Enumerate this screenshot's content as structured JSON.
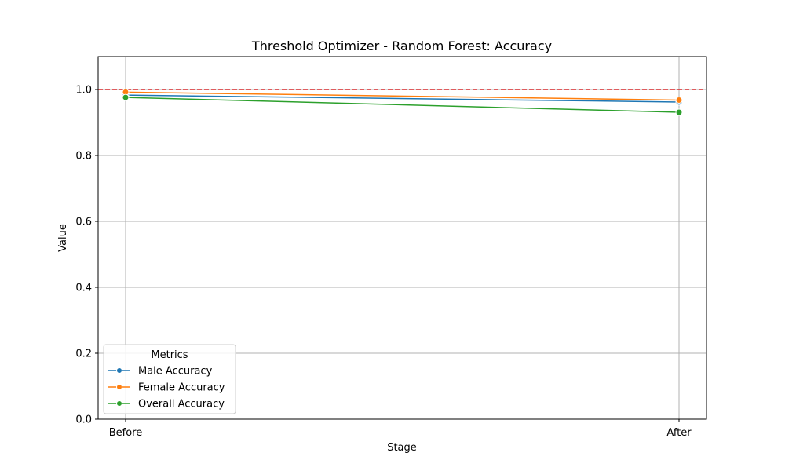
{
  "chart_data": {
    "type": "line",
    "title": "Threshold Optimizer - Random Forest: Accuracy",
    "xlabel": "Stage",
    "ylabel": "Value",
    "categories": [
      "Before",
      "After"
    ],
    "ylim": [
      0,
      1.1
    ],
    "yticks": [
      0.0,
      0.2,
      0.4,
      0.6,
      0.8,
      1.0
    ],
    "ytick_labels": [
      "0.0",
      "0.2",
      "0.4",
      "0.6",
      "0.8",
      "1.0"
    ],
    "grid": true,
    "reference_line": {
      "y": 1.0,
      "color": "#d62728",
      "style": "dashed"
    },
    "legend": {
      "title": "Metrics",
      "placement": "lower-left"
    },
    "series": [
      {
        "name": "Male Accuracy",
        "color": "#1f77b4",
        "values": [
          0.983,
          0.962
        ]
      },
      {
        "name": "Female Accuracy",
        "color": "#ff7f0e",
        "values": [
          0.992,
          0.968
        ]
      },
      {
        "name": "Overall Accuracy",
        "color": "#2ca02c",
        "values": [
          0.976,
          0.931
        ]
      }
    ]
  }
}
